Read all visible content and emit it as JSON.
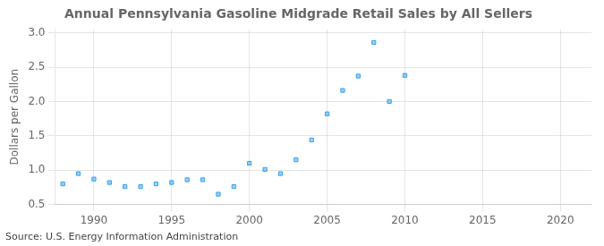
{
  "chart_data": {
    "type": "scatter",
    "title": "Annual Pennsylvania Gasoline Midgrade Retail Sales by All Sellers",
    "ylabel": "Dollars per Gallon",
    "annotation": "Source: U.S. Energy Information Administration",
    "x": [
      1988,
      1989,
      1990,
      1991,
      1992,
      1993,
      1994,
      1995,
      1996,
      1997,
      1998,
      1999,
      2000,
      2001,
      2002,
      2003,
      2004,
      2005,
      2006,
      2007,
      2008,
      2009,
      2010
    ],
    "values": [
      0.8,
      0.95,
      0.87,
      0.82,
      0.76,
      0.76,
      0.8,
      0.82,
      0.86,
      0.86,
      0.65,
      0.76,
      1.1,
      1.01,
      0.95,
      1.15,
      1.44,
      1.82,
      2.16,
      2.37,
      2.86,
      2.0,
      2.38
    ],
    "xlim": [
      1987.5,
      2022
    ],
    "xticks": [
      1990,
      1995,
      2000,
      2005,
      2010,
      2015,
      2020
    ],
    "ylim": [
      0.5,
      3.05
    ],
    "yticks": [
      0.5,
      {
        "value": 1.0,
        "label": "1.0"
      },
      1.5,
      {
        "value": 2.0,
        "label": "2.0"
      },
      2.5,
      {
        "value": 3.0,
        "label": "3.0"
      }
    ],
    "grid": true,
    "marker": "square"
  }
}
